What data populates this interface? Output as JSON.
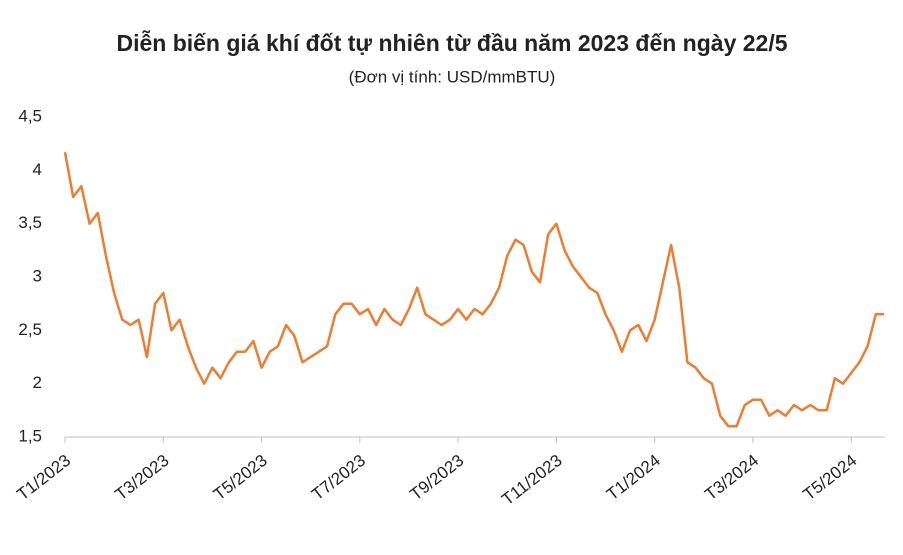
{
  "chart_data": {
    "type": "line",
    "title": "Diễn biến giá khí đốt tự nhiên từ đầu năm 2023 đến ngày 22/5",
    "subtitle": "(Đơn vị tính: USD/mmBTU)",
    "categories": [
      "T1/2023",
      null,
      null,
      null,
      null,
      null,
      null,
      null,
      null,
      null,
      null,
      null,
      "T3/2023",
      null,
      null,
      null,
      null,
      null,
      null,
      null,
      null,
      null,
      null,
      null,
      "T5/2023",
      null,
      null,
      null,
      null,
      null,
      null,
      null,
      null,
      null,
      null,
      null,
      "T7/2023",
      null,
      null,
      null,
      null,
      null,
      null,
      null,
      null,
      null,
      null,
      null,
      "T9/2023",
      null,
      null,
      null,
      null,
      null,
      null,
      null,
      null,
      null,
      null,
      null,
      "T11/2023",
      null,
      null,
      null,
      null,
      null,
      null,
      null,
      null,
      null,
      null,
      null,
      "T1/2024",
      null,
      null,
      null,
      null,
      null,
      null,
      null,
      null,
      null,
      null,
      null,
      "T3/2024",
      null,
      null,
      null,
      null,
      null,
      null,
      null,
      null,
      null,
      null,
      null,
      "T5/2024",
      null,
      null,
      null,
      null
    ],
    "values": [
      4.17,
      3.75,
      3.85,
      3.5,
      3.6,
      3.2,
      2.85,
      2.6,
      2.55,
      2.6,
      2.25,
      2.75,
      2.85,
      2.5,
      2.6,
      2.35,
      2.15,
      2.0,
      2.15,
      2.05,
      2.2,
      2.3,
      2.3,
      2.4,
      2.15,
      2.3,
      2.35,
      2.55,
      2.45,
      2.2,
      2.25,
      2.3,
      2.35,
      2.65,
      2.75,
      2.75,
      2.65,
      2.7,
      2.55,
      2.7,
      2.6,
      2.55,
      2.7,
      2.9,
      2.65,
      2.6,
      2.55,
      2.6,
      2.7,
      2.6,
      2.7,
      2.65,
      2.75,
      2.9,
      3.2,
      3.35,
      3.3,
      3.05,
      2.95,
      3.4,
      3.5,
      3.25,
      3.1,
      3.0,
      2.9,
      2.85,
      2.65,
      2.5,
      2.3,
      2.5,
      2.55,
      2.4,
      2.6,
      2.95,
      3.3,
      2.9,
      2.2,
      2.15,
      2.05,
      2.0,
      1.7,
      1.6,
      1.6,
      1.8,
      1.85,
      1.85,
      1.7,
      1.75,
      1.7,
      1.8,
      1.75,
      1.8,
      1.75,
      1.75,
      2.05,
      2.0,
      2.1,
      2.2,
      2.35,
      2.65,
      2.65
    ],
    "color": "#ed7d31",
    "ylim": [
      1.5,
      4.5
    ],
    "yticks": [
      {
        "value": 1.5,
        "label": "1,5"
      },
      2,
      {
        "value": 2.5,
        "label": "2,5"
      },
      3,
      {
        "value": 3.5,
        "label": "3,5"
      },
      4,
      {
        "value": 4.5,
        "label": "4,5"
      }
    ],
    "grid": false
  }
}
